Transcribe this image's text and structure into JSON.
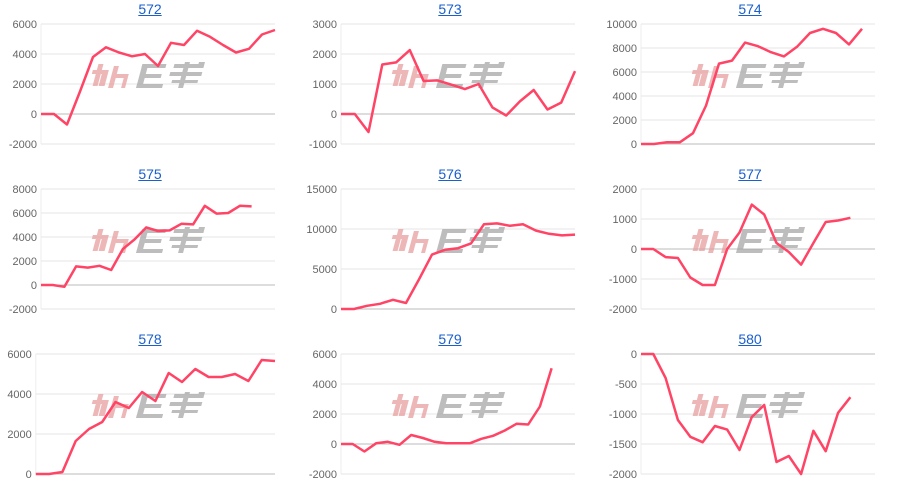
{
  "watermark": {
    "text": "みんレポ",
    "colors": {
      "primary": "#e8a0a0",
      "secondary": "#a8a8a8"
    }
  },
  "line_color": "#ff4466",
  "chart_data": [
    {
      "type": "line",
      "title": "572",
      "ylim": [
        -2000,
        6000
      ],
      "yticks": [
        -2000,
        0,
        2000,
        4000,
        6000
      ],
      "x_max": 19,
      "grid": true,
      "values": [
        0,
        0,
        -700,
        1500,
        3800,
        4450,
        4100,
        3850,
        4000,
        3200,
        4750,
        4600,
        5550,
        5150,
        4600,
        4100,
        4350,
        5300,
        5600
      ]
    },
    {
      "type": "line",
      "title": "573",
      "ylim": [
        -1000,
        3000
      ],
      "yticks": [
        -1000,
        0,
        1000,
        2000,
        3000
      ],
      "x_max": 18,
      "grid": true,
      "values": [
        0,
        0,
        -600,
        1650,
        1720,
        2130,
        1100,
        1120,
        980,
        830,
        1000,
        220,
        -50,
        420,
        800,
        150,
        380,
        1430
      ]
    },
    {
      "type": "line",
      "title": "574",
      "ylim": [
        0,
        10000
      ],
      "yticks": [
        0,
        2000,
        4000,
        6000,
        8000,
        10000
      ],
      "x_max": 19,
      "grid": true,
      "values": [
        0,
        0,
        150,
        150,
        900,
        3200,
        6700,
        6950,
        8450,
        8150,
        7650,
        7300,
        8100,
        9250,
        9600,
        9250,
        8300,
        9600
      ]
    },
    {
      "type": "line",
      "title": "575",
      "ylim": [
        -2000,
        8000
      ],
      "yticks": [
        -2000,
        0,
        2000,
        4000,
        6000,
        8000
      ],
      "x_max": 21,
      "grid": true,
      "values": [
        0,
        0,
        -150,
        1550,
        1450,
        1600,
        1250,
        3000,
        3800,
        4800,
        4500,
        4550,
        5100,
        5050,
        6600,
        5950,
        6000,
        6600,
        6550
      ]
    },
    {
      "type": "line",
      "title": "576",
      "ylim": [
        0,
        15000
      ],
      "yticks": [
        0,
        5000,
        10000,
        15000
      ],
      "x_max": 19,
      "grid": true,
      "values": [
        0,
        0,
        400,
        650,
        1150,
        750,
        3700,
        6800,
        7400,
        7600,
        8200,
        10600,
        10700,
        10400,
        10600,
        9800,
        9400,
        9200,
        9300
      ]
    },
    {
      "type": "line",
      "title": "577",
      "ylim": [
        -2000,
        2000
      ],
      "yticks": [
        -2000,
        -1000,
        0,
        1000,
        2000
      ],
      "x_max": 20,
      "grid": true,
      "values": [
        0,
        0,
        -270,
        -300,
        -950,
        -1200,
        -1200,
        0,
        550,
        1480,
        1150,
        200,
        -100,
        -520,
        200,
        900,
        950,
        1040
      ]
    },
    {
      "type": "line",
      "title": "578",
      "ylim": [
        0,
        6000
      ],
      "yticks": [
        0,
        2000,
        4000,
        6000
      ],
      "x_max": 19,
      "grid": true,
      "values": [
        0,
        0,
        100,
        1650,
        2250,
        2600,
        3600,
        3300,
        4100,
        3650,
        5050,
        4600,
        5250,
        4850,
        4850,
        5000,
        4650,
        5700,
        5650
      ]
    },
    {
      "type": "line",
      "title": "579",
      "ylim": [
        -2000,
        6000
      ],
      "yticks": [
        -2000,
        0,
        2000,
        4000,
        6000
      ],
      "x_max": 21,
      "grid": true,
      "values": [
        0,
        0,
        -500,
        50,
        150,
        -50,
        600,
        400,
        150,
        50,
        50,
        50,
        350,
        550,
        900,
        1350,
        1300,
        2500,
        5050
      ]
    },
    {
      "type": "line",
      "title": "580",
      "ylim": [
        -2000,
        0
      ],
      "yticks": [
        -2000,
        -1500,
        -1000,
        -500,
        0
      ],
      "x_max": 20,
      "grid": true,
      "values": [
        0,
        0,
        -400,
        -1100,
        -1380,
        -1470,
        -1200,
        -1260,
        -1600,
        -1050,
        -850,
        -1800,
        -1700,
        -2000,
        -1280,
        -1620,
        -980,
        -720
      ]
    }
  ]
}
